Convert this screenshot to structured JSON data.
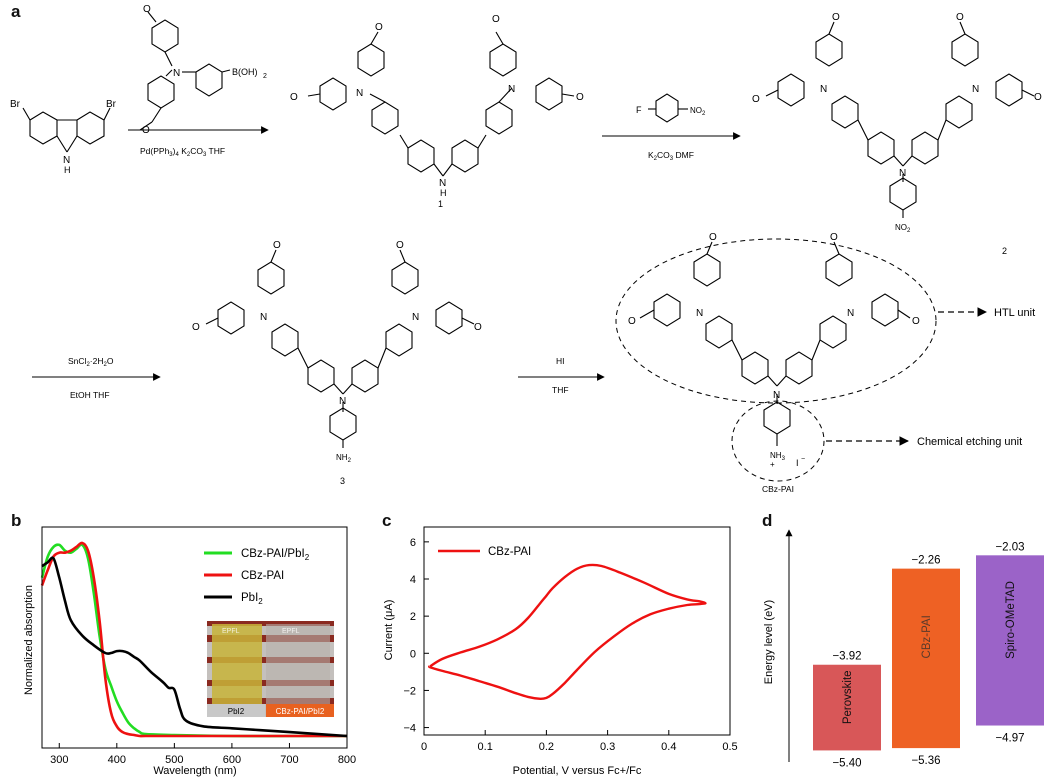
{
  "panels": {
    "a": "a",
    "b": "b",
    "c": "c",
    "d": "d"
  },
  "scheme": {
    "br": "Br",
    "nh": "N",
    "h": "H",
    "n": "N",
    "o": "O",
    "boronic": "B(OH)",
    "boronic_sub": "2",
    "step1": {
      "reagent_parts": [
        "Pd(PPh",
        "3",
        ")",
        "4",
        " K",
        "2",
        "CO",
        "3",
        " THF"
      ]
    },
    "step2": {
      "reagent_top": "F",
      "reagent_top2": "NO",
      "reagent_top2_sub": "2",
      "below_parts": [
        "K",
        "2",
        "CO",
        "3",
        " DMF"
      ]
    },
    "step3": {
      "above_parts": [
        "SnCl",
        "2",
        "·2H",
        "2",
        "O"
      ],
      "below": "EtOH THF"
    },
    "step4": {
      "above": "HI",
      "below": "THF"
    },
    "no2": "NO",
    "no2_sub": "2",
    "nh2": "NH",
    "nh2_sub": "2",
    "nh3": "NH",
    "nh3_sub": "3",
    "plus": "+",
    "iodide": "I",
    "minus": "−",
    "labels": {
      "c1": "1",
      "c2": "2",
      "c3": "3",
      "final": "CBz-PAI"
    },
    "htl_unit": "HTL unit",
    "etching_unit": "Chemical etching unit"
  },
  "chart_data": [
    {
      "type": "line",
      "panel": "b",
      "xlabel": "Wavelength (nm)",
      "ylabel": "Normalized absorption",
      "xlim": [
        270,
        800
      ],
      "xticks": [
        300,
        400,
        500,
        600,
        700,
        800
      ],
      "legend_position": "top-right",
      "series": [
        {
          "name": "CBz-PAI/PbI2",
          "color": "#22dd22",
          "x": [
            270,
            280,
            290,
            300,
            310,
            320,
            330,
            340,
            350,
            360,
            370,
            380,
            390,
            400,
            410,
            420,
            430,
            440,
            450,
            500,
            600,
            700,
            800
          ],
          "y": [
            0.82,
            0.93,
            0.98,
            0.99,
            0.96,
            0.95,
            0.97,
            0.99,
            0.92,
            0.74,
            0.52,
            0.35,
            0.26,
            0.18,
            0.12,
            0.07,
            0.04,
            0.02,
            0.01,
            0.005,
            0,
            0,
            0
          ]
        },
        {
          "name": "CBz-PAI",
          "color": "#ee1111",
          "x": [
            270,
            280,
            290,
            300,
            310,
            320,
            330,
            340,
            350,
            360,
            370,
            380,
            390,
            400,
            410,
            420,
            430,
            440,
            450,
            500,
            600,
            700,
            800
          ],
          "y": [
            0.78,
            0.86,
            0.93,
            0.95,
            0.95,
            0.96,
            0.98,
            1.0,
            0.96,
            0.82,
            0.6,
            0.3,
            0.12,
            0.05,
            0.02,
            0.01,
            0.005,
            0,
            0,
            0,
            0,
            0,
            0
          ]
        },
        {
          "name": "PbI2",
          "color": "#000000",
          "x": [
            270,
            280,
            290,
            300,
            310,
            320,
            340,
            360,
            380,
            390,
            400,
            410,
            420,
            430,
            440,
            460,
            480,
            490,
            500,
            510,
            520,
            550,
            600,
            650,
            700,
            750,
            800
          ],
          "y": [
            0.88,
            0.9,
            0.92,
            0.82,
            0.7,
            0.6,
            0.52,
            0.47,
            0.43,
            0.43,
            0.44,
            0.44,
            0.43,
            0.41,
            0.39,
            0.33,
            0.28,
            0.25,
            0.24,
            0.14,
            0.08,
            0.05,
            0.04,
            0.03,
            0.02,
            0.01,
            0.0
          ]
        }
      ],
      "inset": {
        "left_label": "PbI2",
        "right_label": "CBz-PAI/PbI2",
        "logo_text": "EPFL"
      }
    },
    {
      "type": "line",
      "panel": "c",
      "xlabel": "Potential, V versus Fc+/Fc",
      "ylabel": "Current (μA)",
      "xlim": [
        0.0,
        0.5
      ],
      "ylim": [
        -4.4,
        6.8
      ],
      "xticks": [
        "0",
        "0.1",
        "0.2",
        "0.3",
        "0.4",
        "0.5"
      ],
      "yticks": [
        "−4",
        "−2",
        "0",
        "2",
        "4",
        "6"
      ],
      "legend_position": "top-left",
      "series": [
        {
          "name": "CBz-PAI",
          "color": "#ee1111",
          "x": [
            0.01,
            0.03,
            0.06,
            0.09,
            0.12,
            0.15,
            0.17,
            0.19,
            0.2,
            0.21,
            0.23,
            0.25,
            0.27,
            0.29,
            0.32,
            0.36,
            0.4,
            0.43,
            0.45,
            0.46,
            0.45,
            0.43,
            0.4,
            0.37,
            0.34,
            0.31,
            0.28,
            0.25,
            0.23,
            0.21,
            0.2,
            0.19,
            0.17,
            0.15,
            0.12,
            0.09,
            0.06,
            0.03,
            0.01
          ],
          "y": [
            -0.7,
            -0.3,
            0.05,
            0.35,
            0.75,
            1.3,
            1.9,
            2.7,
            3.1,
            3.5,
            4.1,
            4.55,
            4.75,
            4.7,
            4.35,
            3.8,
            3.2,
            2.9,
            2.8,
            2.7,
            2.65,
            2.6,
            2.4,
            2.1,
            1.6,
            0.9,
            0.1,
            -0.9,
            -1.6,
            -2.2,
            -2.4,
            -2.45,
            -2.35,
            -2.15,
            -1.8,
            -1.5,
            -1.2,
            -0.95,
            -0.75
          ]
        }
      ]
    },
    {
      "type": "bar",
      "panel": "d",
      "ylabel": "Energy level (eV)",
      "categories": [
        "Perovskite",
        "CBz-PAI",
        "Spiro-OMeTAD"
      ],
      "top_values": [
        -3.92,
        -2.26,
        -2.03
      ],
      "bottom_values": [
        -5.4,
        -5.36,
        -4.97
      ],
      "top_labels": [
        "−3.92",
        "−2.26",
        "−2.03"
      ],
      "bottom_labels": [
        "−5.40",
        "−5.36",
        "−4.97"
      ],
      "colors": [
        "#d85758",
        "#ee6124",
        "#9b63c8"
      ]
    }
  ]
}
